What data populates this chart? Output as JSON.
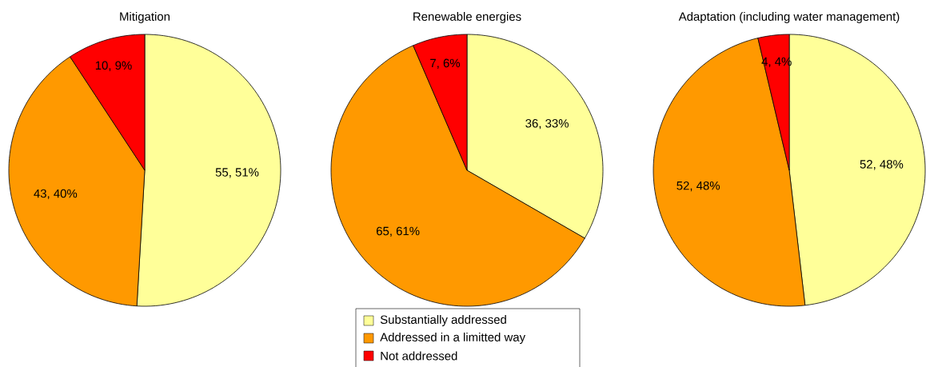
{
  "chart_data": [
    {
      "type": "pie",
      "title": "Mitigation",
      "categories": [
        null,
        null,
        null
      ],
      "values": [
        55,
        43,
        10
      ],
      "colors": [
        "#ffff99",
        "#ff9900",
        "#ff0000"
      ],
      "value_labels": [
        "55, 51%",
        "43, 40%",
        "10, 9%"
      ]
    },
    {
      "type": "pie",
      "title": "Renewable energies",
      "categories": [
        "Substantially addressed",
        "Addressed in a limitted way",
        "Not addressed"
      ],
      "values": [
        36,
        65,
        7
      ],
      "colors": [
        "#ffff99",
        "#ff9900",
        "#ff0000"
      ],
      "value_labels": [
        "36, 33%",
        "65, 61%",
        "7, 6%"
      ],
      "legend": "bottom"
    },
    {
      "type": "pie",
      "title": "Adaptation (including water management)",
      "categories": [
        null,
        null,
        null
      ],
      "values": [
        52,
        52,
        4
      ],
      "colors": [
        "#ffff99",
        "#ff9900",
        "#ff0000"
      ],
      "value_labels": [
        "52, 48%",
        "52, 48%",
        "4, 4%"
      ]
    }
  ]
}
